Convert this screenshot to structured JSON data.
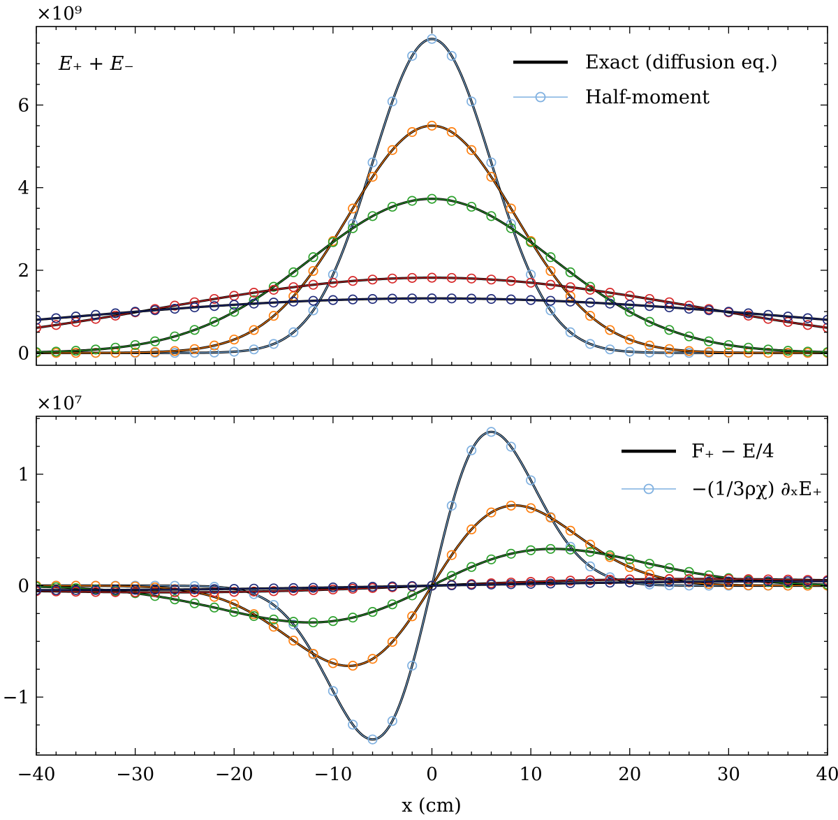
{
  "chart_data": [
    {
      "type": "line",
      "panel": "top",
      "annotation": "E₊ + E₋",
      "multiplier_label": "×10⁹",
      "scale": 1000000000.0,
      "xlim": [
        -40,
        40
      ],
      "ylim": [
        -0.3,
        7.9
      ],
      "yticks": [
        0,
        2,
        4,
        6
      ],
      "ytick_labels": [
        "0",
        "2",
        "4",
        "6"
      ],
      "legend": {
        "position": "top-right",
        "entries": [
          "Exact (diffusion eq.)",
          "Half-moment"
        ]
      },
      "marker_x_start": -40,
      "marker_x_step": 2,
      "series": [
        {
          "name": "t1",
          "color": "#7fb0e0",
          "amplitude": 7.6,
          "sigma": 6.0,
          "offset": 0.0
        },
        {
          "name": "t2",
          "color": "#ff7f0e",
          "amplitude": 5.5,
          "sigma": 8.4,
          "offset": 0.0
        },
        {
          "name": "t3",
          "color": "#2ca02c",
          "amplitude": 3.73,
          "sigma": 12.3,
          "offset": 0.0
        },
        {
          "name": "t4",
          "color": "#d62728",
          "amplitude": 1.82,
          "sigma": 27.0,
          "offset": 0.0
        },
        {
          "name": "t5",
          "color": "#1f2a7a",
          "amplitude": 1.32,
          "sigma": 40.0,
          "offset": 0.0
        }
      ]
    },
    {
      "type": "line",
      "panel": "bottom",
      "multiplier_label": "×10⁷",
      "scale": 10000000.0,
      "xlim": [
        -40,
        40
      ],
      "ylim": [
        -1.52,
        1.52
      ],
      "yticks": [
        -1,
        0,
        1
      ],
      "ytick_labels": [
        "−1",
        "0",
        "1"
      ],
      "xticks": [
        -40,
        -30,
        -20,
        -10,
        0,
        10,
        20,
        30,
        40
      ],
      "xtick_labels": [
        "−40",
        "−30",
        "−20",
        "−10",
        "0",
        "10",
        "20",
        "30",
        "40"
      ],
      "xlabel": "x (cm)",
      "legend": {
        "position": "top-right",
        "entries": [
          "F₊ − E/4",
          "−(1/3ρχ) ∂ₓE₊"
        ]
      },
      "marker_x_start": -40,
      "marker_x_step": 2,
      "series": [
        {
          "name": "t1",
          "color": "#7fb0e0",
          "sigma": 6.0,
          "peak": 1.38
        },
        {
          "name": "t2",
          "color": "#ff7f0e",
          "sigma": 8.4,
          "peak": 0.72
        },
        {
          "name": "t3",
          "color": "#2ca02c",
          "sigma": 12.3,
          "peak": 0.33
        },
        {
          "name": "t4",
          "color": "#d62728",
          "sigma": 27.0,
          "peak": 0.06
        },
        {
          "name": "t5",
          "color": "#1f2a7a",
          "sigma": 40.0,
          "peak": 0.04
        }
      ]
    }
  ]
}
